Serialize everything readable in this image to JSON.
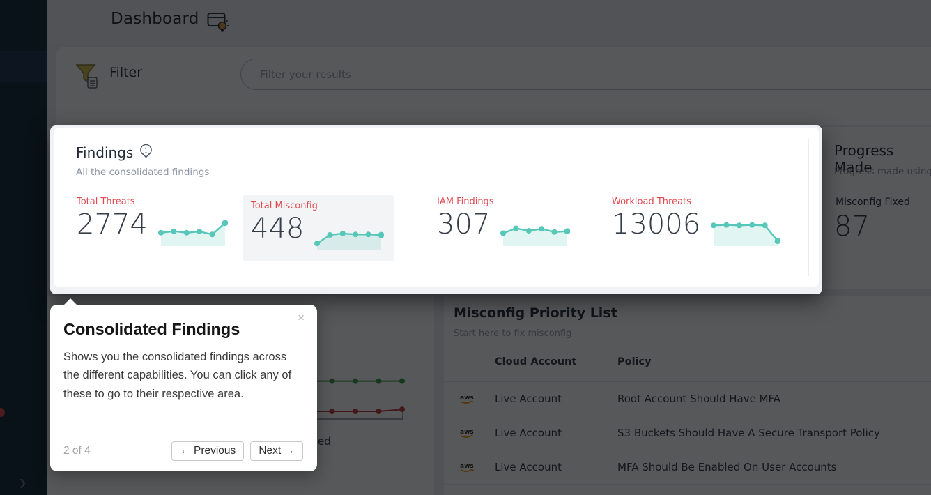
{
  "app": {
    "header": {
      "title": "Dashboard",
      "icon": "window-lightbulb-tips-icon"
    },
    "sidebar": {
      "icon": "collapse-chevron-icon",
      "chevron": "❯",
      "notification_color": "#e0484e"
    },
    "filter": {
      "label": "Filter",
      "icon": "filter-funnel-icon",
      "placeholder": "Filter your results"
    },
    "progress_panel": {
      "title": "Progress Made",
      "subtitle": "Progress made using C",
      "metric_label": "Misconfig Fixed",
      "metric_value": "87"
    },
    "misconfig_panel": {
      "title": "Misconfig Priority List",
      "subtitle": "Start here to fix misconfig",
      "columns": [
        "Cloud Account",
        "Policy"
      ],
      "rows": [
        {
          "cloud_icon": "aws-icon",
          "account": "Live Account",
          "policy": "Root Account Should Have MFA"
        },
        {
          "cloud_icon": "aws-icon",
          "account": "Live Account",
          "policy": "S3 Buckets Should Have A Secure Transport Policy"
        },
        {
          "cloud_icon": "aws-icon",
          "account": "Live Account",
          "policy": "MFA Should Be Enabled On User Accounts"
        }
      ]
    },
    "background_chart": {
      "legend_fragment": "ed",
      "green": [
        0.82,
        0.82,
        0.82,
        0.82,
        0.82
      ],
      "red": [
        0.2,
        0.2,
        0.2,
        0.2,
        0.24
      ],
      "green_color": "#3f9d44",
      "red_color": "#c63b38"
    }
  },
  "spotlight": {
    "title": "Findings",
    "info_icon": "info-pin-icon",
    "subtitle": "All the consolidated findings",
    "metrics": [
      {
        "label": "Total Threats",
        "value": "2774",
        "sparkline": [
          0.52,
          0.58,
          0.52,
          0.57,
          0.45,
          0.92
        ]
      },
      {
        "label": "Total Misconfig",
        "value": "448",
        "sparkline": [
          0.25,
          0.6,
          0.66,
          0.62,
          0.62,
          0.6
        ],
        "highlighted": true
      },
      {
        "label": "IAM Findings",
        "value": "307",
        "sparkline": [
          0.5,
          0.7,
          0.6,
          0.68,
          0.55,
          0.58
        ]
      },
      {
        "label": "Workload Threats",
        "value": "13006",
        "sparkline": [
          0.82,
          0.84,
          0.82,
          0.84,
          0.82,
          0.18
        ]
      }
    ]
  },
  "tooltip": {
    "title": "Consolidated Findings",
    "body": "Shows you the consolidated findings across the different capabilities. You can click any of these to go to their respective area.",
    "step": "2 of 4",
    "prev_label": "← Previous",
    "next_label": "Next →",
    "close_label": "×"
  },
  "colors": {
    "metric_label_red": "#e0494f",
    "sparkline_teal": "#56c7b8",
    "sidebar_navy": "#15283c",
    "aws_orange": "#f09100",
    "dim_overlay": "rgba(5,6,9,0.67)"
  },
  "chart_data": [
    {
      "type": "line",
      "name": "total-threats-sparkline",
      "values": [
        0.52,
        0.58,
        0.52,
        0.57,
        0.45,
        0.92
      ],
      "color": "#56c7b8"
    },
    {
      "type": "line",
      "name": "total-misconfig-sparkline",
      "values": [
        0.25,
        0.6,
        0.66,
        0.62,
        0.62,
        0.6
      ],
      "color": "#56c7b8"
    },
    {
      "type": "line",
      "name": "iam-findings-sparkline",
      "values": [
        0.5,
        0.7,
        0.6,
        0.68,
        0.55,
        0.58
      ],
      "color": "#56c7b8"
    },
    {
      "type": "line",
      "name": "workload-threats-sparkline",
      "values": [
        0.82,
        0.84,
        0.82,
        0.84,
        0.82,
        0.18
      ],
      "color": "#56c7b8"
    },
    {
      "type": "line",
      "name": "background-trend-chart",
      "note": "partially hidden behind tour tooltip",
      "series": [
        {
          "name": "green-series",
          "values": [
            0.82,
            0.82,
            0.82,
            0.82,
            0.82
          ],
          "color": "#3f9d44"
        },
        {
          "name": "red-series",
          "values": [
            0.2,
            0.2,
            0.2,
            0.2,
            0.24
          ],
          "color": "#c63b38"
        }
      ]
    }
  ]
}
